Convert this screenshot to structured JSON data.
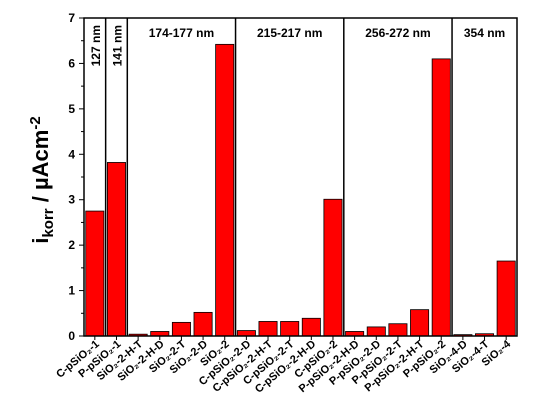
{
  "chart_data": {
    "type": "bar",
    "ylabel_main": "i",
    "ylabel_sub": "korr",
    "ylabel_unit": " / µAcm",
    "ylabel_sup": "-2",
    "xlabel": "",
    "ylim": [
      0,
      7
    ],
    "yticks": [
      "0",
      "1",
      "2",
      "3",
      "4",
      "5",
      "6",
      "7"
    ],
    "bar_color": "#ff0000",
    "categories": [
      "C-pSiO₂-1",
      "P-pSiO₂-1",
      "SiO₂-2-H-T",
      "SiO₂-2-H-D",
      "SiO₂-2-T",
      "SiO₂-2-D",
      "SiO₂-2",
      "C-pSiO₂-2-D",
      "C-pSiO₂-2-H-T",
      "C-pSiO₂-2-T",
      "C-pSiO₂-2-H-D",
      "C-pSiO₂-2",
      "P-pSiO₂-2-H-D",
      "P-pSiO₂-2-D",
      "P-pSiO₂-2-T",
      "P-pSiO₂-2-H-T",
      "P-pSiO₂-2",
      "SiO₂-4-D",
      "SiO₂-4-T",
      "SiO₂-4"
    ],
    "values": [
      2.75,
      3.82,
      0.04,
      0.1,
      0.3,
      0.52,
      6.42,
      0.12,
      0.32,
      0.32,
      0.39,
      3.01,
      0.1,
      0.2,
      0.27,
      0.58,
      6.1,
      0.03,
      0.05,
      1.65
    ],
    "groups": [
      {
        "label": "127 nm",
        "start": 0,
        "end": 0,
        "vertical": true
      },
      {
        "label": "141 nm",
        "start": 1,
        "end": 1,
        "vertical": true
      },
      {
        "label": "174-177 nm",
        "start": 2,
        "end": 6,
        "vertical": false
      },
      {
        "label": "215-217 nm",
        "start": 7,
        "end": 11,
        "vertical": false
      },
      {
        "label": "256-272 nm",
        "start": 12,
        "end": 16,
        "vertical": false
      },
      {
        "label": "354 nm",
        "start": 17,
        "end": 19,
        "vertical": false
      }
    ]
  }
}
